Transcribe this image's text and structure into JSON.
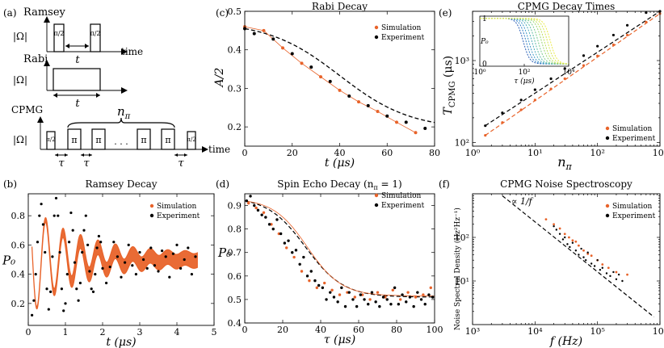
{
  "colors": {
    "simulation": "#e8632a",
    "experiment": "#000000",
    "fit": "#000000"
  },
  "schematics": {
    "panel_label": "(a)",
    "ramsey": {
      "title": "Ramsey",
      "omega": "|Ω|",
      "pulse_label": "π/2",
      "t_label": "t",
      "time_label": "time"
    },
    "rabi": {
      "title": "Rabi",
      "omega": "|Ω|",
      "t_label": "t"
    },
    "cpmg": {
      "title": "CPMG",
      "omega": "|Ω|",
      "pi2_label": "π/2",
      "pi_label": "π",
      "n_label": "n",
      "n_sub": "π",
      "tau_label": "τ",
      "dots": "· · ·",
      "time_label": "time"
    }
  },
  "chart_data": [
    {
      "id": "b",
      "panel_label": "(b)",
      "type": "line",
      "title": "Ramsey Decay",
      "xlabel": "t (μs)",
      "ylabel": "P₀",
      "xlim": [
        0,
        5
      ],
      "ylim": [
        0.05,
        0.95
      ],
      "xticks": [
        0,
        1,
        2,
        3,
        4,
        5
      ],
      "yticks": [
        0.2,
        0.4,
        0.6,
        0.8
      ],
      "legend": [
        "Simulation",
        "Experiment"
      ],
      "legend_position": "top-right",
      "simulation_model": {
        "offset": 0.5,
        "amplitude": 0.4,
        "period_us": 0.47,
        "decay_us": 1.2,
        "band_amplitude": 0.05,
        "t_start": 0.1,
        "t_end": 4.55
      },
      "experiment": {
        "x": [
          0.1,
          0.15,
          0.2,
          0.25,
          0.3,
          0.35,
          0.4,
          0.45,
          0.5,
          0.55,
          0.6,
          0.65,
          0.7,
          0.75,
          0.8,
          0.85,
          0.9,
          0.95,
          1.0,
          1.05,
          1.1,
          1.15,
          1.2,
          1.25,
          1.3,
          1.35,
          1.4,
          1.45,
          1.5,
          1.55,
          1.6,
          1.65,
          1.7,
          1.75,
          1.8,
          1.85,
          1.9,
          1.95,
          2.0,
          2.1,
          2.2,
          2.3,
          2.4,
          2.5,
          2.6,
          2.7,
          2.8,
          2.9,
          3.0,
          3.1,
          3.2,
          3.3,
          3.4,
          3.5,
          3.6,
          3.7,
          3.8,
          3.9,
          4.0,
          4.1,
          4.2,
          4.3,
          4.4,
          4.5
        ],
        "y": [
          0.12,
          0.22,
          0.4,
          0.62,
          0.8,
          0.88,
          0.74,
          0.55,
          0.3,
          0.16,
          0.28,
          0.52,
          0.8,
          0.92,
          0.8,
          0.55,
          0.3,
          0.15,
          0.2,
          0.4,
          0.62,
          0.82,
          0.7,
          0.48,
          0.3,
          0.22,
          0.34,
          0.55,
          0.7,
          0.8,
          0.6,
          0.42,
          0.3,
          0.28,
          0.4,
          0.58,
          0.66,
          0.62,
          0.44,
          0.34,
          0.45,
          0.62,
          0.52,
          0.38,
          0.48,
          0.6,
          0.46,
          0.4,
          0.55,
          0.5,
          0.44,
          0.58,
          0.46,
          0.42,
          0.56,
          0.52,
          0.38,
          0.54,
          0.6,
          0.44,
          0.5,
          0.58,
          0.4,
          0.52
        ]
      }
    },
    {
      "id": "c",
      "panel_label": "(c)",
      "type": "line",
      "title": "Rabi Decay",
      "xlabel": "t (μs)",
      "ylabel": "A/2",
      "xlim": [
        0,
        80
      ],
      "ylim": [
        0.15,
        0.5
      ],
      "xticks": [
        0,
        20,
        40,
        60,
        80
      ],
      "yticks": [
        0.2,
        0.3,
        0.4,
        0.5
      ],
      "legend": [
        "Simulation",
        "Experiment"
      ],
      "legend_position": "top-right",
      "simulation": {
        "x": [
          0,
          8,
          16,
          24,
          32,
          40,
          48,
          56,
          64,
          72
        ],
        "y": [
          0.46,
          0.45,
          0.405,
          0.365,
          0.33,
          0.295,
          0.265,
          0.24,
          0.212,
          0.185
        ]
      },
      "experiment": {
        "x": [
          0,
          4,
          12,
          20,
          28,
          36,
          44,
          52,
          60,
          68,
          76
        ],
        "y": [
          0.455,
          0.442,
          0.428,
          0.39,
          0.355,
          0.318,
          0.28,
          0.255,
          0.228,
          0.212,
          0.196
        ]
      },
      "fit_model": {
        "y0": 0.455,
        "a": 0.28,
        "t0": 40,
        "w": 15,
        "offset": 0.13
      }
    },
    {
      "id": "d",
      "panel_label": "(d)",
      "type": "scatter",
      "title": "Spin Echo Decay (n",
      "title_sub": "π",
      "title_end": " = 1)",
      "xlabel": "τ (μs)",
      "ylabel": "P₀",
      "xlim": [
        0,
        100
      ],
      "ylim": [
        0.4,
        0.95
      ],
      "xticks": [
        0,
        20,
        40,
        60,
        80,
        100
      ],
      "yticks": [
        0.4,
        0.5,
        0.6,
        0.7,
        0.8,
        0.9
      ],
      "legend": [
        "Simulation",
        "Experiment"
      ],
      "legend_position": "top-right",
      "simulation": {
        "x": [
          2,
          6,
          10,
          14,
          18,
          22,
          26,
          30,
          34,
          38,
          42,
          46,
          50,
          54,
          58,
          62,
          66,
          70,
          74,
          78,
          82,
          86,
          90,
          94,
          98
        ],
        "y": [
          0.91,
          0.89,
          0.87,
          0.82,
          0.78,
          0.72,
          0.68,
          0.62,
          0.58,
          0.55,
          0.57,
          0.54,
          0.52,
          0.53,
          0.51,
          0.52,
          0.5,
          0.53,
          0.51,
          0.54,
          0.5,
          0.53,
          0.51,
          0.52,
          0.55
        ]
      },
      "experiment": {
        "x": [
          1,
          3,
          5,
          7,
          9,
          11,
          13,
          15,
          17,
          19,
          21,
          23,
          25,
          27,
          29,
          31,
          33,
          35,
          37,
          39,
          41,
          43,
          45,
          47,
          49,
          51,
          53,
          55,
          57,
          59,
          61,
          63,
          65,
          67,
          69,
          71,
          73,
          75,
          77,
          79,
          81,
          83,
          85,
          87,
          89,
          91,
          93,
          95,
          97,
          99
        ],
        "y": [
          0.92,
          0.94,
          0.9,
          0.88,
          0.86,
          0.85,
          0.82,
          0.8,
          0.84,
          0.78,
          0.74,
          0.75,
          0.7,
          0.71,
          0.65,
          0.68,
          0.6,
          0.62,
          0.58,
          0.56,
          0.55,
          0.5,
          0.53,
          0.51,
          0.49,
          0.55,
          0.47,
          0.53,
          0.5,
          0.47,
          0.52,
          0.5,
          0.48,
          0.53,
          0.49,
          0.47,
          0.51,
          0.5,
          0.48,
          0.55,
          0.48,
          0.52,
          0.49,
          0.51,
          0.47,
          0.53,
          0.5,
          0.48,
          0.52,
          0.51
        ]
      },
      "fit_model": {
        "y0": 0.92,
        "a": 0.41,
        "t0": 32,
        "w": 10,
        "offset": 0.51
      }
    },
    {
      "id": "e",
      "panel_label": "(e)",
      "type": "scatter",
      "title": "CPMG Decay Times",
      "xlabel": "n",
      "xlabel_sub": "π",
      "ylabel": "T",
      "ylabel_sub": "CPMG",
      "ylabel_end": " (μs)",
      "xscale": "log",
      "yscale": "log",
      "xlim": [
        1,
        1000
      ],
      "ylim": [
        90,
        4000
      ],
      "xticks": [
        1,
        10,
        100,
        1000
      ],
      "xtick_labels": [
        "10⁰",
        "10¹",
        "10²",
        "10³"
      ],
      "yticks": [
        100,
        1000
      ],
      "ytick_labels": [
        "10²",
        "10³"
      ],
      "legend": [
        "Simulation",
        "Experiment"
      ],
      "legend_position": "bottom-right",
      "simulation": {
        "x": [
          1.6,
          3,
          6,
          10,
          18,
          30,
          60,
          100,
          180,
          300,
          600,
          1000
        ],
        "y": [
          122,
          175,
          250,
          330,
          450,
          600,
          870,
          1140,
          1560,
          2050,
          2950,
          3750
        ]
      },
      "experiment": {
        "x": [
          1.6,
          3,
          6,
          10,
          18,
          30,
          60,
          100,
          180,
          300,
          600,
          1000
        ],
        "y": [
          160,
          230,
          330,
          440,
          600,
          800,
          1150,
          1500,
          2050,
          2700,
          3850,
          4000
        ]
      },
      "inset": {
        "ylabel": "P₀",
        "xlabel": "τ (μs)",
        "xticks": [
          1,
          100,
          10000
        ],
        "xtick_labels": [
          "10⁰",
          "10²",
          "10⁴"
        ],
        "yticks": [
          0,
          1
        ],
        "ytick_labels": [
          "0",
          "1"
        ],
        "curve_midpoints_us": [
          90,
          120,
          160,
          220,
          300,
          420,
          600,
          800,
          1100,
          1500
        ]
      }
    },
    {
      "id": "f",
      "panel_label": "(f)",
      "type": "scatter",
      "title": "CPMG Noise Spectroscopy",
      "xlabel": "f (Hz)",
      "ylabel": "Noise Spectral Density (Hz²Hz⁻¹)",
      "xscale": "log",
      "yscale": "log",
      "xlim": [
        1000,
        1000000
      ],
      "ylim": [
        1,
        1000
      ],
      "xticks": [
        1000,
        10000,
        100000,
        1000000
      ],
      "xtick_labels": [
        "10³",
        "10⁴",
        "10⁵",
        "10⁶"
      ],
      "yticks": [
        10,
        100
      ],
      "ytick_labels": [
        "10¹",
        "10²"
      ],
      "legend": [
        "Simulation",
        "Experiment"
      ],
      "legend_position": "top-right",
      "annotation": "∝ 1/f",
      "fit_line": {
        "x": [
          3000,
          800000
        ],
        "y": [
          900,
          1.5
        ]
      },
      "simulation": {
        "x": [
          15000,
          20000,
          25000,
          30000,
          35000,
          40000,
          45000,
          50000,
          60000,
          70000,
          80000,
          100000,
          120000,
          150000,
          200000,
          300000
        ],
        "y": [
          260,
          200,
          160,
          120,
          100,
          85,
          80,
          65,
          50,
          42,
          38,
          30,
          24,
          20,
          16,
          14
        ]
      },
      "experiment": {
        "x": [
          20000,
          22000,
          25000,
          28000,
          30000,
          33000,
          36000,
          40000,
          45000,
          50000,
          55000,
          60000,
          65000,
          70000,
          80000,
          90000,
          100000,
          110000,
          120000,
          140000,
          160000,
          180000,
          200000,
          220000,
          250000
        ],
        "y": [
          180,
          150,
          120,
          90,
          100,
          70,
          60,
          75,
          50,
          40,
          55,
          35,
          30,
          45,
          25,
          22,
          30,
          18,
          20,
          15,
          13,
          16,
          11,
          14,
          10
        ]
      }
    }
  ]
}
